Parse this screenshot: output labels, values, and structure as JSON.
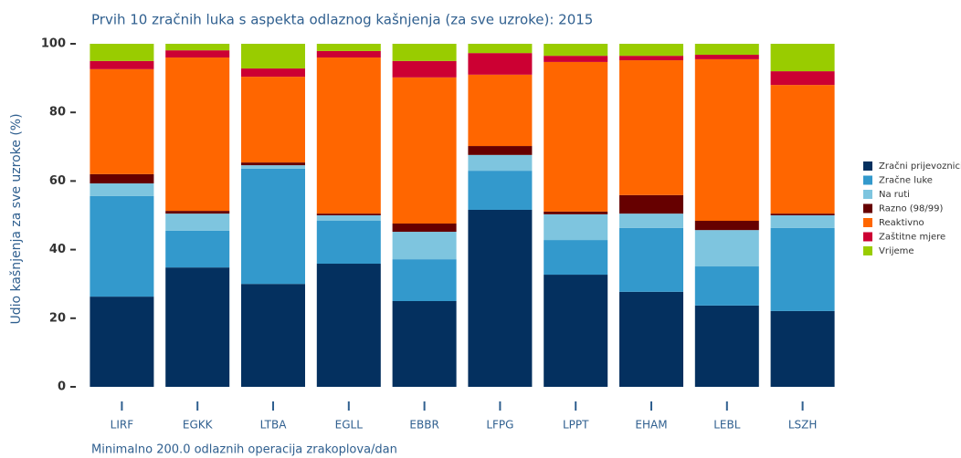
{
  "chart_data": {
    "type": "stacked_bar",
    "title": "Prvih 10 zračnih luka s aspekta odlaznog kašnjenja (za sve uzroke): 2015",
    "y_label": "Udio kašnjenja za sve uzroke (%)",
    "annotation": "Minimalno 200.0 odlaznih operacija zrakoplova/dan",
    "categories": [
      "LIRF",
      "EGKK",
      "LTBA",
      "EGLL",
      "EBBR",
      "LFPG",
      "LPPT",
      "EHAM",
      "LEBL",
      "LSZH"
    ],
    "series": [
      {
        "name": "Zračni prijevoznici",
        "color": "#04305f",
        "values": [
          26.3,
          34.8,
          30,
          35.9,
          25,
          51.6,
          32.7,
          27.7,
          23.7,
          22.1
        ]
      },
      {
        "name": "Zračne luke",
        "color": "#3399cc",
        "values": [
          29.3,
          10.7,
          33.6,
          12.5,
          12.2,
          11.4,
          10.1,
          18.6,
          11.4,
          24.2
        ]
      },
      {
        "name": "Na ruti",
        "color": "#7ec5df",
        "values": [
          3.7,
          5.0,
          1.0,
          1.6,
          8,
          4.6,
          7.5,
          4.2,
          10.6,
          3.7
        ]
      },
      {
        "name": "Razno (98/99)",
        "color": "#660000",
        "values": [
          2.7,
          0.8,
          0.8,
          0.5,
          2.4,
          2.6,
          0.8,
          5.4,
          2.7,
          0.5
        ]
      },
      {
        "name": "Reaktivno",
        "color": "#ff6600",
        "values": [
          30.6,
          44.7,
          25,
          45.5,
          42.6,
          20.8,
          43.6,
          39.3,
          47.1,
          37.5
        ]
      },
      {
        "name": "Zaštitne mjere",
        "color": "#cc0033",
        "values": [
          2.4,
          2.1,
          2.4,
          1.9,
          4.8,
          6.3,
          1.8,
          1.3,
          1.3,
          4
        ]
      },
      {
        "name": "Vrijeme",
        "color": "#99cc00",
        "values": [
          5.0,
          1.9,
          7.2,
          2.1,
          5,
          2.7,
          3.5,
          3.5,
          3.2,
          8
        ]
      }
    ],
    "ylim": [
      0,
      100
    ],
    "yticks": [
      0,
      20,
      40,
      60,
      80,
      100
    ]
  }
}
